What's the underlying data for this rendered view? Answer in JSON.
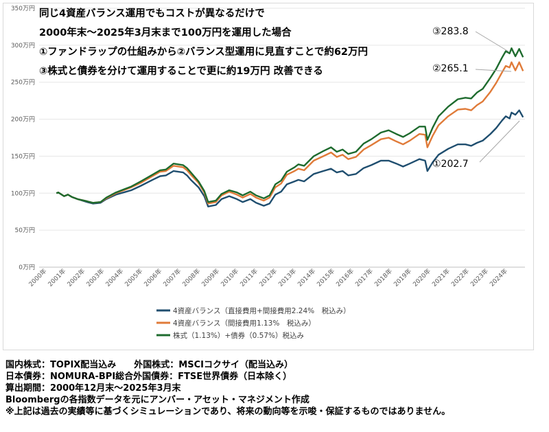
{
  "chart_data": {
    "type": "line",
    "headline": [
      "同じ4資産バランス運用でもコストが異なるだけで",
      "2000年末～2025年3月末まで100万円を運用した場合",
      "①ファンドラップの仕組みから②バランス型運用に見直すことで約62万円",
      "③株式と債券を分けて運用することで更に約19万円 改善できる"
    ],
    "y_ticks": [
      "0万円",
      "50万円",
      "100万円",
      "150万円",
      "200万円",
      "250万円",
      "300万円",
      "350万円"
    ],
    "ylim": [
      0,
      350
    ],
    "x_ticks": [
      "2000年",
      "2001年",
      "2002年",
      "2003年",
      "2004年",
      "2005年",
      "2006年",
      "2007年",
      "2008年",
      "2009年",
      "2010年",
      "2011年",
      "2012年",
      "2013年",
      "2014年",
      "2015年",
      "2016年",
      "2017年",
      "2018年",
      "2019年",
      "2020年",
      "2021年",
      "2022年",
      "2023年",
      "2024年"
    ],
    "x": [
      2000.9,
      2001.0,
      2001.3,
      2001.5,
      2001.7,
      2002.0,
      2002.5,
      2002.8,
      2003.2,
      2003.5,
      2004.0,
      2004.4,
      2004.8,
      2005.3,
      2005.9,
      2006.3,
      2006.6,
      2007.0,
      2007.5,
      2007.7,
      2007.9,
      2008.3,
      2008.6,
      2008.8,
      2009.2,
      2009.5,
      2009.9,
      2010.3,
      2010.6,
      2011.0,
      2011.3,
      2011.7,
      2012.0,
      2012.3,
      2012.6,
      2012.9,
      2013.3,
      2013.5,
      2013.8,
      2014.3,
      2014.8,
      2015.2,
      2015.5,
      2015.8,
      2016.1,
      2016.5,
      2016.9,
      2017.3,
      2017.8,
      2018.2,
      2018.6,
      2018.95,
      2019.3,
      2019.8,
      2020.1,
      2020.22,
      2020.5,
      2020.8,
      2021.3,
      2021.8,
      2022.2,
      2022.5,
      2022.8,
      2023.1,
      2023.5,
      2023.8,
      2024.1,
      2024.3,
      2024.5,
      2024.6,
      2024.8,
      2025.0,
      2025.2
    ],
    "series": [
      {
        "name": "4資産バランス（直接費用+間接費用2.24%　税込み）",
        "color": "#1f4e6f",
        "values": [
          100,
          101,
          96,
          98,
          95,
          92,
          88,
          86,
          87,
          92,
          98,
          101,
          104,
          110,
          118,
          123,
          124,
          130,
          128,
          124,
          118,
          108,
          96,
          82,
          84,
          92,
          96,
          92,
          88,
          92,
          87,
          83,
          86,
          98,
          102,
          112,
          116,
          118,
          116,
          126,
          130,
          133,
          128,
          130,
          124,
          126,
          134,
          138,
          144,
          144,
          140,
          136,
          140,
          146,
          144,
          130,
          142,
          152,
          160,
          166,
          166,
          164,
          168,
          171,
          180,
          188,
          198,
          204,
          201,
          209,
          206,
          212,
          202.7
        ]
      },
      {
        "name": "4資産バランス（間接費用1.13%　税込み）",
        "color": "#e07b39",
        "values": [
          100,
          101,
          96,
          98,
          95,
          92,
          89,
          87,
          88,
          93,
          100,
          104,
          108,
          114,
          123,
          129,
          130,
          137,
          135,
          131,
          125,
          114,
          101,
          86,
          88,
          97,
          102,
          98,
          94,
          99,
          94,
          90,
          94,
          108,
          113,
          125,
          130,
          133,
          131,
          144,
          150,
          155,
          149,
          152,
          146,
          149,
          159,
          165,
          173,
          175,
          170,
          166,
          171,
          180,
          179,
          162,
          178,
          192,
          204,
          213,
          214,
          212,
          219,
          224,
          237,
          249,
          263,
          272,
          270,
          277,
          266,
          277,
          265.1
        ]
      },
      {
        "name": "株式（1.13%）+債券（0.57%）税込み",
        "color": "#1e6b2e",
        "values": [
          100,
          101,
          96,
          98,
          95,
          92,
          89,
          87,
          88,
          94,
          101,
          105,
          109,
          116,
          125,
          131,
          132,
          140,
          138,
          134,
          128,
          116,
          103,
          88,
          90,
          99,
          104,
          101,
          97,
          102,
          97,
          93,
          97,
          112,
          117,
          129,
          135,
          139,
          137,
          150,
          157,
          162,
          156,
          159,
          153,
          156,
          167,
          173,
          182,
          185,
          180,
          176,
          181,
          190,
          190,
          172,
          189,
          204,
          217,
          227,
          229,
          228,
          236,
          241,
          256,
          268,
          283,
          292,
          289,
          296,
          285,
          295,
          283.8
        ]
      }
    ],
    "end_labels": [
      "③283.8",
      "②265.1",
      "①202.7"
    ],
    "legend_position": "bottom"
  },
  "notes": [
    "国内株式：TOPIX配当込み　　外国株式：MSCIコクサイ（配当込み）",
    "日本債券：NOMURA-BPI総合外国債券：FTSE世界債券（日本除く）",
    "算出期間：2000年12月末～2025年3月末",
    "Bloombergの各指数データを元にアンバー・アセット・マネジメント作成",
    "※上記は過去の実績等に基づくシミュレーションであり、将来の動向等を示唆・保証するものではありません。"
  ]
}
